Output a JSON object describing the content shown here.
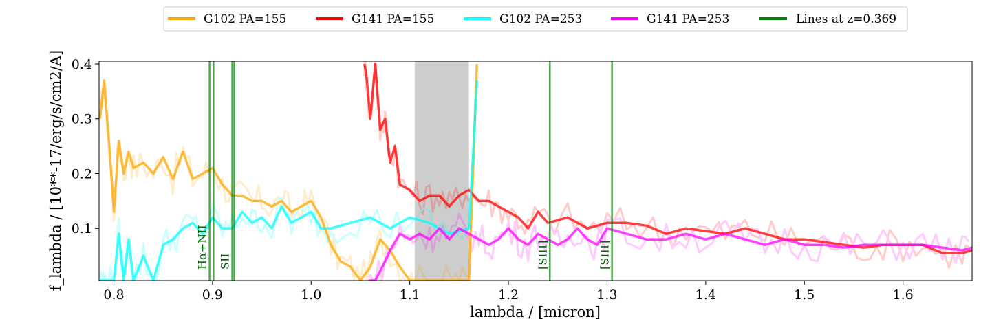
{
  "chart_data": {
    "type": "line",
    "title": "",
    "xlabel": "lambda / [micron]",
    "ylabel": "f_lambda / [10**-17/erg/s/cm2/A]",
    "xlim": [
      0.785,
      1.67
    ],
    "ylim": [
      0.005,
      0.405
    ],
    "xticks": [
      0.8,
      0.9,
      1.0,
      1.1,
      1.2,
      1.3,
      1.4,
      1.5,
      1.6
    ],
    "xtick_labels": [
      "0.8",
      "0.9",
      "1.0",
      "1.1",
      "1.2",
      "1.3",
      "1.4",
      "1.5",
      "1.6"
    ],
    "yticks": [
      0.1,
      0.2,
      0.3,
      0.4
    ],
    "ytick_labels": [
      "0.1",
      "0.2",
      "0.3",
      "0.4"
    ],
    "legend": {
      "placement": "top-center",
      "entries": [
        {
          "label": "G102 PA=155",
          "color": "#ffa500"
        },
        {
          "label": "G141 PA=155",
          "color": "#ff0000"
        },
        {
          "label": "G102 PA=253",
          "color": "#00ffff"
        },
        {
          "label": "G141 PA=253",
          "color": "#ff00ff"
        },
        {
          "label": "Lines at z=0.369",
          "color": "#008000"
        }
      ]
    },
    "shaded_region": {
      "x0": 1.105,
      "x1": 1.16,
      "color": "#c0c0c0"
    },
    "emission_lines": [
      {
        "x": 0.897,
        "label": "Hα+NII",
        "show_label": true
      },
      {
        "x": 0.901,
        "label": "",
        "show_label": false
      },
      {
        "x": 0.92,
        "label": "SII",
        "show_label": true
      },
      {
        "x": 0.922,
        "label": "",
        "show_label": false
      },
      {
        "x": 1.242,
        "label": "[SIII]",
        "show_label": true
      },
      {
        "x": 1.305,
        "label": "[SIII]",
        "show_label": true
      }
    ],
    "series": [
      {
        "name": "G102 PA=155",
        "color": "#ffa500",
        "x": [
          0.786,
          0.79,
          0.795,
          0.8,
          0.805,
          0.81,
          0.815,
          0.82,
          0.83,
          0.84,
          0.85,
          0.86,
          0.87,
          0.88,
          0.89,
          0.9,
          0.91,
          0.92,
          0.93,
          0.94,
          0.95,
          0.96,
          0.97,
          0.98,
          0.99,
          1.0,
          1.01,
          1.02,
          1.03,
          1.04,
          1.05,
          1.06,
          1.07,
          1.08,
          1.09,
          1.1,
          1.105,
          1.12,
          1.13,
          1.14,
          1.15,
          1.16,
          1.165,
          1.168
        ],
        "y": [
          0.3,
          0.37,
          0.26,
          0.13,
          0.26,
          0.2,
          0.24,
          0.21,
          0.22,
          0.2,
          0.23,
          0.19,
          0.24,
          0.19,
          0.2,
          0.21,
          0.18,
          0.16,
          0.16,
          0.15,
          0.15,
          0.14,
          0.15,
          0.13,
          0.14,
          0.15,
          0.12,
          0.07,
          0.04,
          0.03,
          0.005,
          0.03,
          0.08,
          0.06,
          0.03,
          0.005,
          0.005,
          0.005,
          0.005,
          0.005,
          0.005,
          0.005,
          0.25,
          0.4
        ]
      },
      {
        "name": "G141 PA=155",
        "color": "#ff0000",
        "x": [
          1.054,
          1.056,
          1.06,
          1.065,
          1.07,
          1.075,
          1.08,
          1.085,
          1.09,
          1.1,
          1.11,
          1.12,
          1.13,
          1.14,
          1.15,
          1.16,
          1.17,
          1.18,
          1.19,
          1.2,
          1.21,
          1.22,
          1.23,
          1.24,
          1.26,
          1.28,
          1.3,
          1.32,
          1.34,
          1.36,
          1.38,
          1.4,
          1.42,
          1.44,
          1.46,
          1.48,
          1.5,
          1.52,
          1.54,
          1.56,
          1.58,
          1.6,
          1.62,
          1.64,
          1.66,
          1.67
        ],
        "y": [
          0.4,
          0.38,
          0.3,
          0.4,
          0.28,
          0.3,
          0.22,
          0.25,
          0.18,
          0.17,
          0.15,
          0.16,
          0.16,
          0.14,
          0.16,
          0.17,
          0.15,
          0.15,
          0.14,
          0.13,
          0.12,
          0.1,
          0.13,
          0.11,
          0.12,
          0.1,
          0.11,
          0.11,
          0.105,
          0.09,
          0.1,
          0.095,
          0.09,
          0.1,
          0.09,
          0.08,
          0.08,
          0.075,
          0.07,
          0.065,
          0.07,
          0.07,
          0.07,
          0.055,
          0.055,
          0.06
        ]
      },
      {
        "name": "G102 PA=253",
        "color": "#00ffff",
        "x": [
          0.786,
          0.79,
          0.795,
          0.8,
          0.805,
          0.81,
          0.815,
          0.82,
          0.83,
          0.84,
          0.85,
          0.86,
          0.87,
          0.88,
          0.89,
          0.9,
          0.91,
          0.92,
          0.93,
          0.94,
          0.95,
          0.96,
          0.97,
          0.98,
          0.99,
          1.0,
          1.01,
          1.02,
          1.04,
          1.06,
          1.08,
          1.1,
          1.12,
          1.14,
          1.16,
          1.165,
          1.168
        ],
        "y": [
          0.005,
          0.005,
          0.005,
          0.005,
          0.09,
          0.005,
          0.08,
          0.005,
          0.05,
          0.005,
          0.07,
          0.08,
          0.1,
          0.11,
          0.09,
          0.12,
          0.1,
          0.1,
          0.13,
          0.11,
          0.12,
          0.1,
          0.14,
          0.11,
          0.12,
          0.13,
          0.1,
          0.1,
          0.11,
          0.12,
          0.1,
          0.12,
          0.11,
          0.09,
          0.1,
          0.26,
          0.37
        ]
      },
      {
        "name": "G141 PA=253",
        "color": "#ff00ff",
        "x": [
          1.058,
          1.065,
          1.075,
          1.08,
          1.09,
          1.1,
          1.11,
          1.12,
          1.13,
          1.14,
          1.15,
          1.16,
          1.17,
          1.18,
          1.19,
          1.2,
          1.21,
          1.22,
          1.23,
          1.24,
          1.25,
          1.26,
          1.27,
          1.28,
          1.29,
          1.3,
          1.32,
          1.34,
          1.36,
          1.38,
          1.4,
          1.42,
          1.44,
          1.46,
          1.48,
          1.5,
          1.52,
          1.54,
          1.56,
          1.58,
          1.6,
          1.62,
          1.64,
          1.66,
          1.67
        ],
        "y": [
          0.005,
          0.005,
          0.04,
          0.06,
          0.09,
          0.08,
          0.09,
          0.08,
          0.1,
          0.08,
          0.1,
          0.09,
          0.08,
          0.07,
          0.08,
          0.1,
          0.08,
          0.07,
          0.09,
          0.08,
          0.07,
          0.08,
          0.1,
          0.08,
          0.07,
          0.1,
          0.09,
          0.08,
          0.08,
          0.09,
          0.08,
          0.09,
          0.08,
          0.07,
          0.08,
          0.07,
          0.07,
          0.065,
          0.07,
          0.07,
          0.07,
          0.07,
          0.065,
          0.06,
          0.065
        ]
      }
    ]
  }
}
